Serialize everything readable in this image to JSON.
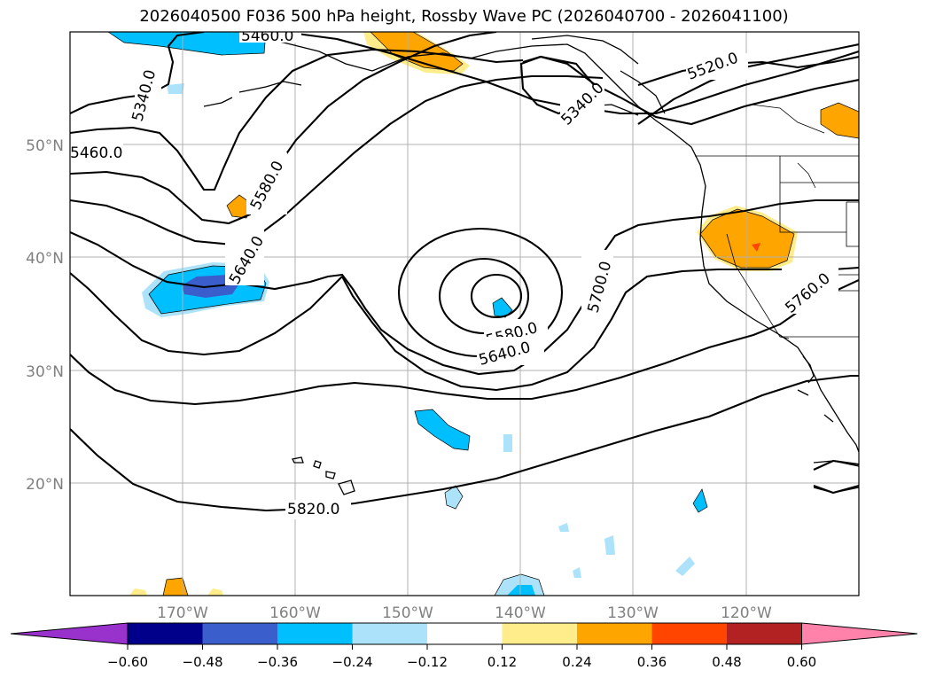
{
  "title": "2026040500 F036 500 hPa height, Rossby Wave PC (2026040700 - 2026041100)",
  "map": {
    "lon_range": [
      -180,
      -110
    ],
    "lat_range": [
      10,
      60
    ],
    "lat_ticks": [
      "50°N",
      "40°N",
      "30°N",
      "20°N"
    ],
    "lon_ticks": [
      "170°W",
      "160°W",
      "150°W",
      "140°W",
      "130°W",
      "120°W"
    ],
    "gridlines": true,
    "contour_labels": [
      "5340.0",
      "5460.0",
      "5340.0",
      "5520.0",
      "5460.0",
      "5580.0",
      "5640.0",
      "5700.0",
      "5580.0",
      "5640.0",
      "5760.0",
      "5820.0"
    ]
  },
  "colorbar": {
    "ticks": [
      "−0.60",
      "−0.48",
      "−0.36",
      "−0.24",
      "−0.12",
      "0.12",
      "0.24",
      "0.36",
      "0.48",
      "0.60"
    ],
    "colors": [
      "#9932CC",
      "#00008B",
      "#3A5FCD",
      "#00BFFF",
      "#ADE3FA",
      "#FFFFFF",
      "#FFEC8B",
      "#FFA500",
      "#FF4500",
      "#B22222",
      "#FF82AB"
    ],
    "extend": "both"
  }
}
